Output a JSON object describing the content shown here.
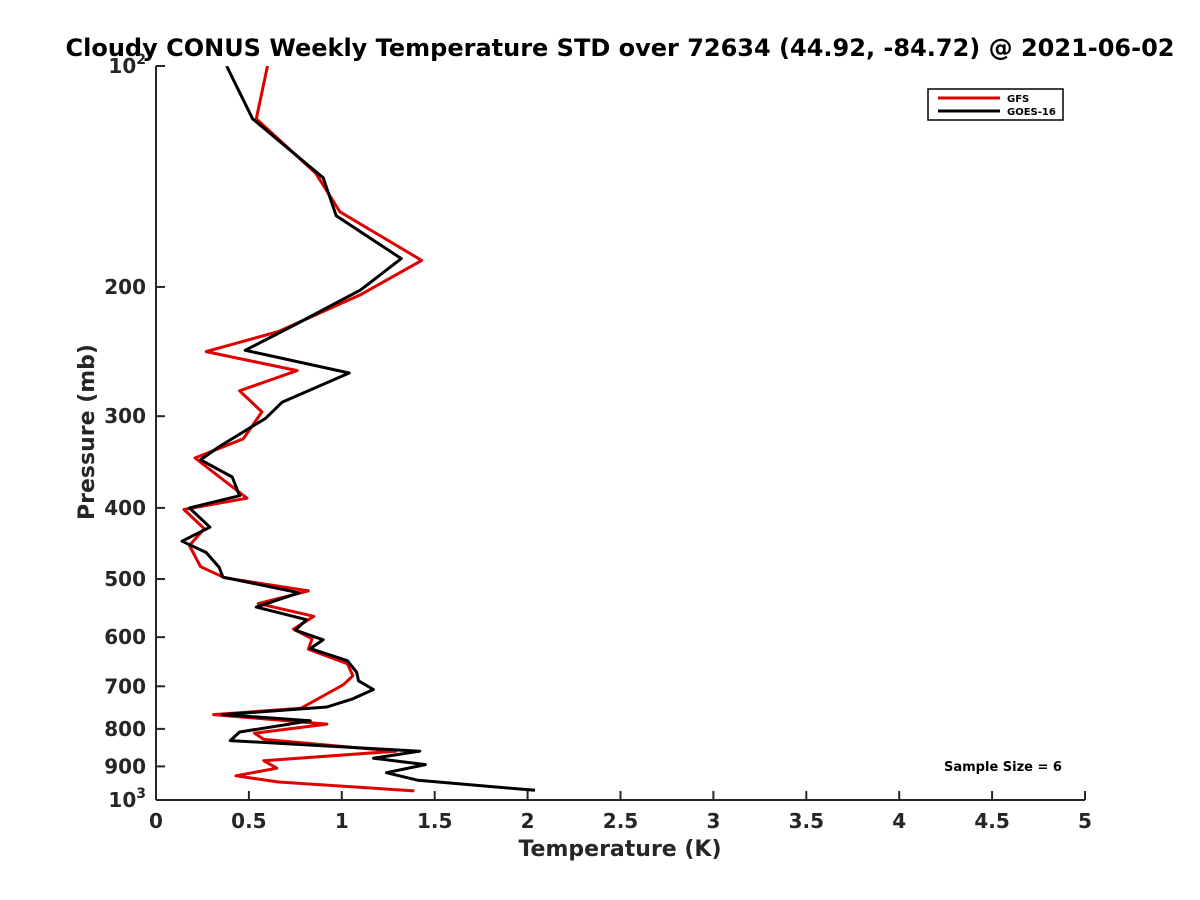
{
  "chart_data": {
    "type": "line",
    "title": "Cloudy CONUS Weekly Temperature STD over 72634 (44.92, -84.72) @ 2021-06-02",
    "xlabel": "Temperature (K)",
    "ylabel": "Pressure (mb)",
    "xlim": [
      0,
      5
    ],
    "ylim": [
      100,
      1000
    ],
    "yscale": "log",
    "y_reversed": true,
    "grid": false,
    "legend_position": "top-right",
    "x_ticks": [
      "0",
      "0.5",
      "1",
      "1.5",
      "2",
      "2.5",
      "3",
      "3.5",
      "4",
      "4.5",
      "5"
    ],
    "y_ticks": [
      {
        "value": 100,
        "base": "10",
        "exp": "2"
      },
      {
        "value": 200,
        "label": "200"
      },
      {
        "value": 300,
        "label": "300"
      },
      {
        "value": 400,
        "label": "400"
      },
      {
        "value": 500,
        "label": "500"
      },
      {
        "value": 600,
        "label": "600"
      },
      {
        "value": 700,
        "label": "700"
      },
      {
        "value": 800,
        "label": "800"
      },
      {
        "value": 900,
        "label": "900"
      },
      {
        "value": 1000,
        "base": "10",
        "exp": "3"
      }
    ],
    "annotation": "Sample Size = 6",
    "series": [
      {
        "name": "GFS",
        "color": "#e00000",
        "points": [
          [
            0.6,
            100
          ],
          [
            0.54,
            118
          ],
          [
            0.86,
            140
          ],
          [
            0.99,
            158
          ],
          [
            1.43,
            184
          ],
          [
            1.1,
            205
          ],
          [
            0.66,
            230
          ],
          [
            0.27,
            245
          ],
          [
            0.76,
            260
          ],
          [
            0.45,
            277
          ],
          [
            0.57,
            296
          ],
          [
            0.47,
            322
          ],
          [
            0.21,
            342
          ],
          [
            0.49,
            388
          ],
          [
            0.15,
            402
          ],
          [
            0.26,
            427
          ],
          [
            0.18,
            450
          ],
          [
            0.24,
            481
          ],
          [
            0.37,
            498
          ],
          [
            0.82,
            519
          ],
          [
            0.55,
            540
          ],
          [
            0.85,
            562
          ],
          [
            0.74,
            585
          ],
          [
            0.84,
            603
          ],
          [
            0.82,
            623
          ],
          [
            1.03,
            652
          ],
          [
            1.06,
            677
          ],
          [
            1.01,
            696
          ],
          [
            0.78,
            750
          ],
          [
            0.31,
            765
          ],
          [
            0.92,
            788
          ],
          [
            0.53,
            811
          ],
          [
            0.58,
            827
          ],
          [
            1.29,
            858
          ],
          [
            0.58,
            884
          ],
          [
            0.65,
            905
          ],
          [
            0.43,
            927
          ],
          [
            0.66,
            945
          ],
          [
            1.39,
            972
          ]
        ]
      },
      {
        "name": "GOES-16",
        "color": "#000000",
        "points": [
          [
            0.38,
            100
          ],
          [
            0.52,
            118
          ],
          [
            0.9,
            142
          ],
          [
            0.97,
            160
          ],
          [
            1.32,
            183
          ],
          [
            1.1,
            202
          ],
          [
            0.75,
            225
          ],
          [
            0.48,
            244
          ],
          [
            1.04,
            262
          ],
          [
            0.68,
            287
          ],
          [
            0.59,
            302
          ],
          [
            0.34,
            330
          ],
          [
            0.24,
            344
          ],
          [
            0.41,
            363
          ],
          [
            0.45,
            385
          ],
          [
            0.18,
            400
          ],
          [
            0.29,
            425
          ],
          [
            0.14,
            444
          ],
          [
            0.27,
            460
          ],
          [
            0.34,
            482
          ],
          [
            0.36,
            497
          ],
          [
            0.77,
            522
          ],
          [
            0.54,
            546
          ],
          [
            0.81,
            568
          ],
          [
            0.75,
            587
          ],
          [
            0.9,
            605
          ],
          [
            0.83,
            622
          ],
          [
            1.03,
            646
          ],
          [
            1.08,
            670
          ],
          [
            1.09,
            688
          ],
          [
            1.17,
            707
          ],
          [
            1.06,
            728
          ],
          [
            0.92,
            747
          ],
          [
            0.36,
            765
          ],
          [
            0.83,
            780
          ],
          [
            0.45,
            808
          ],
          [
            0.4,
            830
          ],
          [
            1.42,
            858
          ],
          [
            1.17,
            877
          ],
          [
            1.45,
            895
          ],
          [
            1.24,
            918
          ],
          [
            1.41,
            940
          ],
          [
            2.04,
            970
          ]
        ]
      }
    ]
  }
}
